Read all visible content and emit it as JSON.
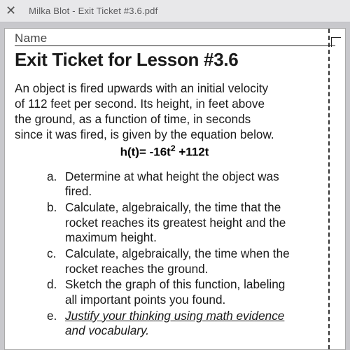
{
  "tab": {
    "title": "Milka Blot - Exit Ticket #3.6.pdf"
  },
  "document": {
    "name_label": "Name",
    "title": "Exit Ticket for Lesson #3.6",
    "problem_line1": "An object is fired upwards with an initial velocity",
    "problem_line2": "of 112 feet per second. Its height, in feet above",
    "problem_line3": "the ground, as a function of time, in seconds",
    "problem_line4": "since it was fired, is given by the equation below.",
    "equation_pre": "h(t)= -16t",
    "equation_sup": "2",
    "equation_post": " +112t",
    "items": {
      "a_letter": "a.",
      "a_text_l1": "Determine at what height the object was",
      "a_text_l2": "fired.",
      "b_letter": "b.",
      "b_text_l1": "Calculate, algebraically, the time that the",
      "b_text_l2": "rocket reaches its greatest height and the",
      "b_text_l3": "maximum height.",
      "c_letter": "c.",
      "c_text_l1": "Calculate, algebraically, the time when the",
      "c_text_l2": "rocket reaches the ground.",
      "d_letter": "d.",
      "d_text_l1": "Sketch the graph of this function, labeling",
      "d_text_l2": "all important points you found.",
      "e_letter": "e.",
      "e_text_under": "Justify your thinking using math evidence",
      "e_text_l2": "and vocabulary."
    }
  }
}
